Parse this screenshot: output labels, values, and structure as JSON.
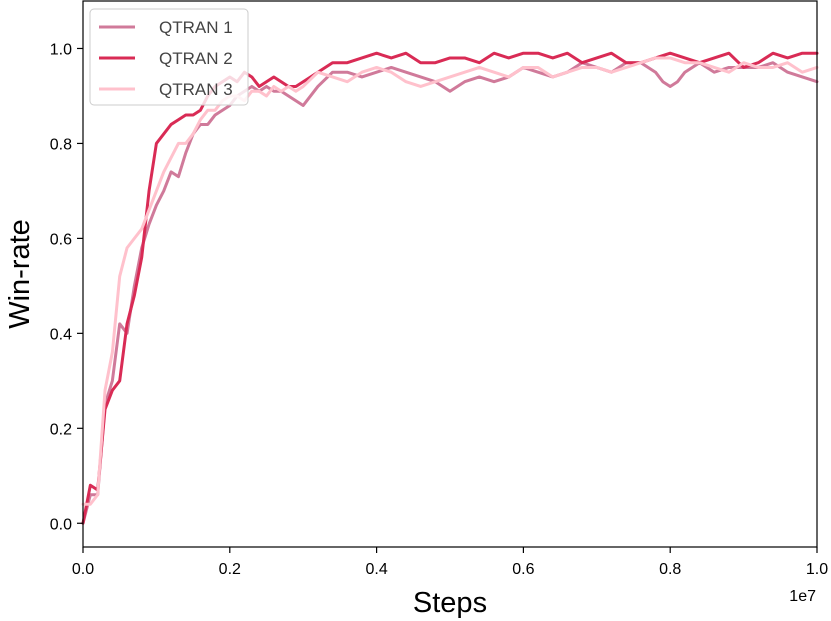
{
  "chart_data": {
    "type": "line",
    "title": "",
    "xlabel": "Steps",
    "ylabel": "Win-rate",
    "x_offset_label": "1e7",
    "xlim": [
      0,
      1.0
    ],
    "ylim": [
      -0.05,
      1.1
    ],
    "x_ticks": [
      0.0,
      0.2,
      0.4,
      0.6,
      0.8,
      1.0
    ],
    "x_tick_labels": [
      "0.0",
      "0.2",
      "0.4",
      "0.6",
      "0.8",
      "1.0"
    ],
    "y_ticks": [
      0.0,
      0.2,
      0.4,
      0.6,
      0.8,
      1.0
    ],
    "y_tick_labels": [
      "0.0",
      "0.2",
      "0.4",
      "0.6",
      "0.8",
      "1.0"
    ],
    "grid": false,
    "legend_position": "upper-left",
    "series": [
      {
        "name": "QTRAN 1",
        "color": "#d07a9a",
        "x": [
          0.0,
          0.01,
          0.02,
          0.03,
          0.04,
          0.05,
          0.06,
          0.07,
          0.08,
          0.09,
          0.1,
          0.11,
          0.12,
          0.13,
          0.14,
          0.15,
          0.16,
          0.17,
          0.18,
          0.19,
          0.2,
          0.21,
          0.22,
          0.23,
          0.24,
          0.25,
          0.26,
          0.27,
          0.28,
          0.29,
          0.3,
          0.32,
          0.34,
          0.36,
          0.38,
          0.4,
          0.42,
          0.44,
          0.46,
          0.48,
          0.5,
          0.52,
          0.54,
          0.56,
          0.58,
          0.6,
          0.62,
          0.64,
          0.66,
          0.68,
          0.7,
          0.72,
          0.74,
          0.76,
          0.78,
          0.79,
          0.8,
          0.81,
          0.82,
          0.84,
          0.86,
          0.88,
          0.9,
          0.92,
          0.94,
          0.96,
          0.98,
          1.0
        ],
        "values": [
          0.0,
          0.06,
          0.06,
          0.25,
          0.3,
          0.42,
          0.4,
          0.5,
          0.58,
          0.63,
          0.67,
          0.7,
          0.74,
          0.73,
          0.78,
          0.82,
          0.84,
          0.84,
          0.86,
          0.87,
          0.88,
          0.9,
          0.91,
          0.92,
          0.91,
          0.92,
          0.91,
          0.91,
          0.9,
          0.89,
          0.88,
          0.92,
          0.95,
          0.95,
          0.94,
          0.95,
          0.96,
          0.95,
          0.94,
          0.93,
          0.91,
          0.93,
          0.94,
          0.93,
          0.94,
          0.96,
          0.95,
          0.94,
          0.95,
          0.97,
          0.96,
          0.95,
          0.97,
          0.97,
          0.95,
          0.93,
          0.92,
          0.93,
          0.95,
          0.97,
          0.95,
          0.96,
          0.96,
          0.96,
          0.97,
          0.95,
          0.94,
          0.93
        ]
      },
      {
        "name": "QTRAN 2",
        "color": "#d92b55",
        "x": [
          0.0,
          0.01,
          0.02,
          0.03,
          0.04,
          0.05,
          0.06,
          0.07,
          0.08,
          0.09,
          0.1,
          0.11,
          0.12,
          0.13,
          0.14,
          0.15,
          0.16,
          0.17,
          0.18,
          0.19,
          0.2,
          0.21,
          0.22,
          0.23,
          0.24,
          0.25,
          0.26,
          0.27,
          0.28,
          0.29,
          0.3,
          0.32,
          0.34,
          0.36,
          0.38,
          0.4,
          0.42,
          0.44,
          0.46,
          0.48,
          0.5,
          0.52,
          0.54,
          0.56,
          0.58,
          0.6,
          0.62,
          0.64,
          0.66,
          0.68,
          0.7,
          0.72,
          0.74,
          0.76,
          0.78,
          0.8,
          0.82,
          0.84,
          0.86,
          0.88,
          0.9,
          0.92,
          0.94,
          0.96,
          0.98,
          1.0
        ],
        "values": [
          0.0,
          0.08,
          0.07,
          0.24,
          0.28,
          0.3,
          0.42,
          0.48,
          0.56,
          0.7,
          0.8,
          0.82,
          0.84,
          0.85,
          0.86,
          0.86,
          0.87,
          0.9,
          0.92,
          0.93,
          0.94,
          0.93,
          0.95,
          0.94,
          0.92,
          0.93,
          0.94,
          0.93,
          0.92,
          0.92,
          0.93,
          0.95,
          0.97,
          0.97,
          0.98,
          0.99,
          0.98,
          0.99,
          0.97,
          0.97,
          0.98,
          0.98,
          0.97,
          0.99,
          0.98,
          0.99,
          0.99,
          0.98,
          0.99,
          0.97,
          0.98,
          0.99,
          0.97,
          0.97,
          0.98,
          0.99,
          0.98,
          0.97,
          0.98,
          0.99,
          0.96,
          0.97,
          0.99,
          0.98,
          0.99,
          0.99
        ]
      },
      {
        "name": "QTRAN 3",
        "color": "#ffc1cc",
        "x": [
          0.0,
          0.01,
          0.02,
          0.03,
          0.04,
          0.05,
          0.06,
          0.07,
          0.08,
          0.09,
          0.1,
          0.11,
          0.12,
          0.13,
          0.14,
          0.15,
          0.16,
          0.17,
          0.18,
          0.19,
          0.2,
          0.21,
          0.22,
          0.23,
          0.24,
          0.25,
          0.26,
          0.27,
          0.28,
          0.29,
          0.3,
          0.32,
          0.34,
          0.36,
          0.38,
          0.4,
          0.42,
          0.44,
          0.46,
          0.48,
          0.5,
          0.52,
          0.54,
          0.56,
          0.58,
          0.6,
          0.62,
          0.64,
          0.66,
          0.68,
          0.7,
          0.72,
          0.74,
          0.76,
          0.78,
          0.8,
          0.82,
          0.84,
          0.86,
          0.88,
          0.9,
          0.92,
          0.94,
          0.96,
          0.98,
          1.0
        ],
        "values": [
          0.04,
          0.04,
          0.06,
          0.28,
          0.36,
          0.52,
          0.58,
          0.6,
          0.62,
          0.66,
          0.7,
          0.74,
          0.77,
          0.8,
          0.8,
          0.82,
          0.85,
          0.87,
          0.87,
          0.89,
          0.9,
          0.9,
          0.89,
          0.91,
          0.91,
          0.9,
          0.92,
          0.91,
          0.92,
          0.91,
          0.92,
          0.95,
          0.94,
          0.93,
          0.95,
          0.96,
          0.95,
          0.93,
          0.92,
          0.93,
          0.94,
          0.95,
          0.96,
          0.95,
          0.94,
          0.96,
          0.96,
          0.94,
          0.95,
          0.96,
          0.96,
          0.95,
          0.96,
          0.97,
          0.98,
          0.98,
          0.97,
          0.97,
          0.96,
          0.95,
          0.97,
          0.96,
          0.96,
          0.97,
          0.95,
          0.96
        ]
      }
    ]
  }
}
